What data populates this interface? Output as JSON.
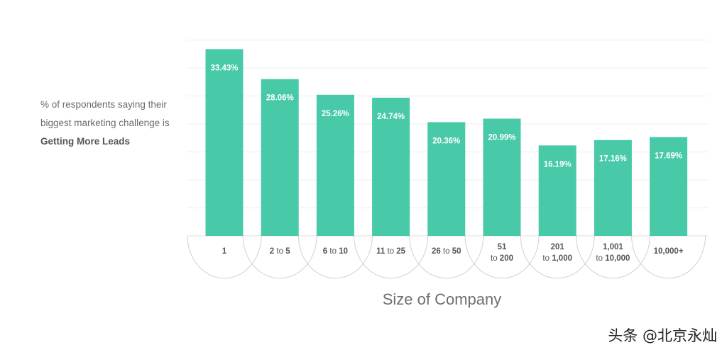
{
  "side_text": {
    "line1": "% of respondents saying their",
    "line2": "biggest marketing challenge is",
    "line3": "Getting More Leads"
  },
  "watermark": "头条 @北京永灿",
  "colors": {
    "bar": "#48c9a8",
    "grid": "#ececec",
    "axis": "#dddddd"
  },
  "chart_data": {
    "type": "bar",
    "xlabel": "Size of Company",
    "ylabel": "",
    "ylim": [
      0,
      35
    ],
    "grid": true,
    "categories": [
      "1",
      "2 to 5",
      "6 to 10",
      "11 to 25",
      "26 to 50",
      "51 to 200",
      "201 to 1,000",
      "1,001 to 10,000",
      "10,000+"
    ],
    "category_labels": [
      [
        {
          "t": "1",
          "b": true
        }
      ],
      [
        {
          "t": "2",
          "b": true
        },
        {
          "t": " to ",
          "b": false
        },
        {
          "t": "5",
          "b": true
        }
      ],
      [
        {
          "t": "6",
          "b": true
        },
        {
          "t": " to ",
          "b": false
        },
        {
          "t": "10",
          "b": true
        }
      ],
      [
        {
          "t": "11",
          "b": true
        },
        {
          "t": " to ",
          "b": false
        },
        {
          "t": "25",
          "b": true
        }
      ],
      [
        {
          "t": "26",
          "b": true
        },
        {
          "t": " to ",
          "b": false
        },
        {
          "t": "50",
          "b": true
        }
      ],
      [
        {
          "t": "51",
          "b": true
        },
        {
          "br": true
        },
        {
          "t": "to ",
          "b": false
        },
        {
          "t": "200",
          "b": true
        }
      ],
      [
        {
          "t": "201",
          "b": true
        },
        {
          "br": true
        },
        {
          "t": "to ",
          "b": false
        },
        {
          "t": "1,000",
          "b": true
        }
      ],
      [
        {
          "t": "1,001",
          "b": true
        },
        {
          "br": true
        },
        {
          "t": "to ",
          "b": false
        },
        {
          "t": "10,000",
          "b": true
        }
      ],
      [
        {
          "t": "10,000+",
          "b": true
        }
      ]
    ],
    "values": [
      33.43,
      28.06,
      25.26,
      24.74,
      20.36,
      20.99,
      16.19,
      17.16,
      17.69
    ],
    "value_labels": [
      "33.43%",
      "28.06%",
      "25.26%",
      "24.74%",
      "20.36%",
      "20.99%",
      "16.19%",
      "17.16%",
      "17.69%"
    ]
  }
}
